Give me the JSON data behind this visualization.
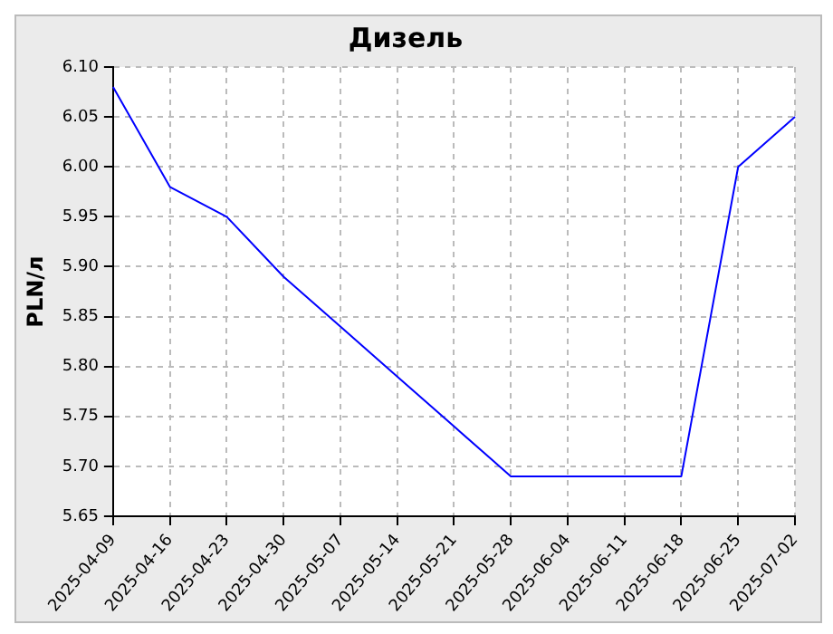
{
  "chart_data": {
    "type": "line",
    "title": "Дизель",
    "ylabel": "PLN/л",
    "categories": [
      "2025-04-09",
      "2025-04-16",
      "2025-04-23",
      "2025-04-30",
      "2025-05-07",
      "2025-05-14",
      "2025-05-21",
      "2025-05-28",
      "2025-06-04",
      "2025-06-11",
      "2025-06-18",
      "2025-06-25",
      "2025-07-02"
    ],
    "series": [
      {
        "color": "#0000ff",
        "values": [
          6.08,
          5.98,
          5.95,
          5.89,
          5.84,
          5.79,
          5.74,
          5.69,
          5.69,
          5.69,
          5.69,
          6.0,
          6.05
        ]
      }
    ],
    "ylim": [
      5.65,
      6.1
    ],
    "yticks": [
      {
        "value": 5.65,
        "label": "5.65"
      },
      {
        "value": 5.7,
        "label": "5.70"
      },
      {
        "value": 5.75,
        "label": "5.75"
      },
      {
        "value": 5.8,
        "label": "5.80"
      },
      {
        "value": 5.85,
        "label": "5.85"
      },
      {
        "value": 5.9,
        "label": "5.90"
      },
      {
        "value": 5.95,
        "label": "5.95"
      },
      {
        "value": 6.0,
        "label": "6.00"
      },
      {
        "value": 6.05,
        "label": "6.05"
      },
      {
        "value": 6.1,
        "label": "6.10"
      }
    ],
    "grid": true,
    "legend": false,
    "marker": "none",
    "line_style": "solid"
  }
}
